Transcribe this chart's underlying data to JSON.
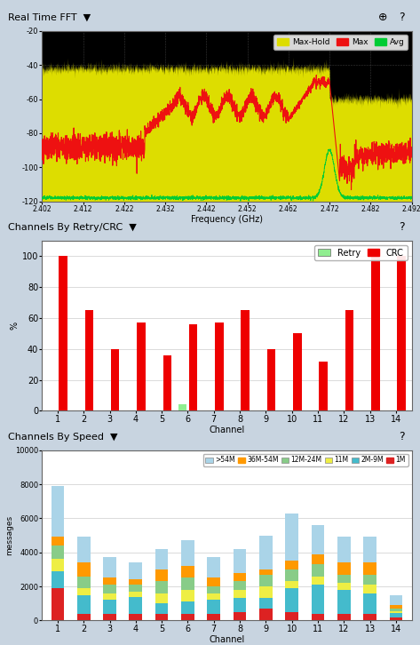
{
  "bg_color": "#c8d4e0",
  "panel_header_bg": "#c8d4e0",
  "plot_bg_fft": "#000000",
  "plot_bg_bar": "#ffffff",
  "fft_title": "Real Time FFT",
  "fft_xlabel": "Frequency (GHz)",
  "fft_ylim": [
    -120,
    -20
  ],
  "fft_xlim": [
    2.402,
    2.492
  ],
  "fft_xticks": [
    2.402,
    2.412,
    2.422,
    2.432,
    2.442,
    2.452,
    2.462,
    2.472,
    2.482,
    2.492
  ],
  "fft_yticks": [
    -120,
    -100,
    -80,
    -60,
    -40,
    -20
  ],
  "retry_title": "Channels By Retry/CRC",
  "retry_xlabel": "Channel",
  "retry_ylabel": "%",
  "retry_channels": [
    1,
    2,
    3,
    4,
    5,
    6,
    7,
    8,
    9,
    10,
    11,
    12,
    13,
    14
  ],
  "retry_values": [
    0,
    0,
    0,
    0,
    0,
    4,
    0,
    0,
    0,
    0,
    0,
    0,
    0,
    0
  ],
  "crc_values": [
    100,
    65,
    40,
    57,
    36,
    56,
    57,
    65,
    40,
    50,
    32,
    65,
    100,
    100
  ],
  "retry_color": "#90ee90",
  "crc_color": "#ee0000",
  "speed_title": "Channels By Speed",
  "speed_xlabel": "Channel",
  "speed_ylabel": "messages",
  "speed_channels": [
    1,
    2,
    3,
    4,
    5,
    6,
    7,
    8,
    9,
    10,
    11,
    12,
    13,
    14
  ],
  "speed_gt54": [
    3000,
    1500,
    1200,
    1000,
    1200,
    1500,
    1200,
    1400,
    2000,
    2800,
    1700,
    1500,
    1500,
    600
  ],
  "speed_36_54": [
    500,
    800,
    400,
    300,
    700,
    700,
    500,
    500,
    300,
    500,
    600,
    700,
    700,
    200
  ],
  "speed_12_24": [
    800,
    700,
    500,
    400,
    700,
    700,
    400,
    500,
    700,
    700,
    700,
    500,
    600,
    150
  ],
  "speed_11": [
    700,
    400,
    400,
    300,
    600,
    700,
    400,
    500,
    700,
    400,
    500,
    400,
    500,
    100
  ],
  "speed_2_9": [
    1000,
    1100,
    800,
    1000,
    600,
    700,
    800,
    800,
    600,
    1400,
    1700,
    1400,
    1200,
    250
  ],
  "speed_1": [
    1900,
    400,
    400,
    400,
    400,
    400,
    400,
    500,
    700,
    500,
    400,
    400,
    400,
    200
  ],
  "color_gt54": "#aad4e8",
  "color_36_54": "#ff9900",
  "color_12_24": "#88cc88",
  "color_11": "#eeee44",
  "color_2_9": "#44bbcc",
  "color_1": "#dd2222"
}
